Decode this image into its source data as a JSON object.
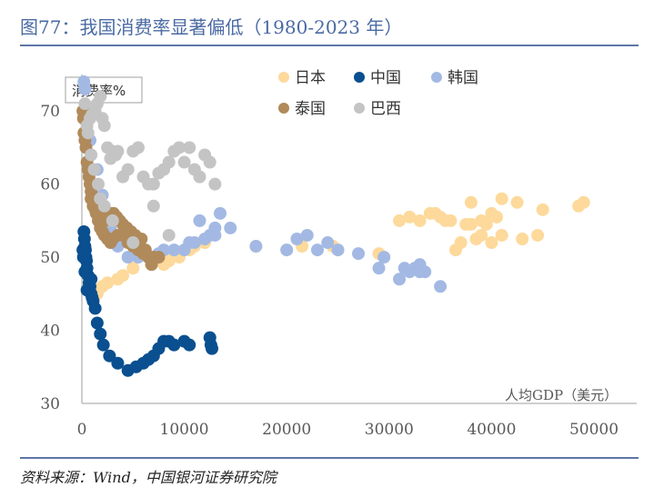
{
  "figure": {
    "title": "图77：我国消费率显著偏低（1980-2023 年）",
    "source": "资料来源：Wind，中国银河证券研究院"
  },
  "chart_data": {
    "type": "scatter",
    "title": "",
    "xlabel": "人均GDP（美元）",
    "ylabel": "消费率%",
    "xlim": [
      0,
      52000
    ],
    "ylim": [
      30,
      75
    ],
    "x_ticks": [
      "0",
      "10000",
      "20000",
      "30000",
      "40000",
      "50000"
    ],
    "y_ticks": [
      "30",
      "40",
      "50",
      "60",
      "70"
    ],
    "grid": false,
    "legend_position": "top-right",
    "series": [
      {
        "name": "日本",
        "color": "#fdd99b",
        "x": [
          9500,
          10500,
          11000,
          12000,
          9000,
          8500,
          8000,
          5000,
          4000,
          3500,
          2500,
          2000,
          1500,
          17000,
          20000,
          21500,
          25000,
          24500,
          29500,
          29000,
          31000,
          32000,
          33000,
          34500,
          35000,
          35500,
          36000,
          37500,
          38000,
          39000,
          39500,
          40000,
          40500,
          41000,
          42500,
          43000,
          45000,
          49000,
          48500,
          39000,
          37000,
          44500,
          41000,
          40000,
          38500,
          36500,
          34000,
          38000
        ],
        "y": [
          50,
          51,
          51.5,
          52,
          50.5,
          49.5,
          49,
          48.5,
          47.5,
          47,
          46.5,
          46,
          45,
          51.5,
          51,
          51.5,
          51,
          51.5,
          50,
          50.5,
          55,
          55.5,
          55,
          56,
          55.5,
          55,
          55,
          54.5,
          57.5,
          55,
          54.5,
          56,
          55.5,
          58,
          57.5,
          52.5,
          56.5,
          57.5,
          57,
          53,
          52,
          53,
          53,
          52,
          52.5,
          51,
          56,
          54.5
        ]
      },
      {
        "name": "中国",
        "color": "#0a4f8f",
        "x": [
          200,
          250,
          300,
          350,
          400,
          450,
          500,
          600,
          700,
          800,
          900,
          1000,
          1100,
          1300,
          1500,
          1800,
          2100,
          2700,
          3500,
          4500,
          5300,
          6000,
          6500,
          7000,
          7500,
          8000,
          8500,
          9000,
          10000,
          10500,
          12500,
          12700,
          12600
        ],
        "y": [
          53.5,
          52.5,
          51.5,
          51,
          50,
          49.5,
          48.5,
          47.5,
          46.5,
          46,
          45,
          44.5,
          44,
          43,
          41,
          39.5,
          38,
          36.5,
          35.5,
          34.5,
          35,
          35.5,
          36,
          36.5,
          37.5,
          38.5,
          38.5,
          38,
          38.5,
          38,
          39,
          37.5,
          38
        ],
        "extra": [
          [
            100,
            51
          ],
          [
            150,
            50
          ],
          [
            300,
            48
          ],
          [
            500,
            45.5
          ],
          [
            900,
            47
          ]
        ]
      },
      {
        "name": "韩国",
        "color": "#a3b9e3",
        "x": [
          200,
          300,
          500,
          800,
          1500,
          2000,
          2400,
          2800,
          3500,
          4500,
          5500,
          6500,
          7500,
          8000,
          9000,
          10000,
          11000,
          12000,
          12500,
          13000,
          14500,
          17000,
          20000,
          21000,
          22000,
          23000,
          24000,
          25000,
          27000,
          29000,
          31000,
          32000,
          33000,
          33500,
          35000,
          29500,
          32500,
          31500,
          33000,
          10500,
          11500,
          13500,
          13000
        ],
        "y": [
          74,
          73,
          70,
          66,
          62,
          58.5,
          56,
          54,
          51.5,
          50,
          50,
          50,
          50.5,
          51,
          51,
          51,
          52,
          52.5,
          53,
          53,
          54,
          51.5,
          51,
          52.5,
          53,
          51,
          52,
          51,
          50.5,
          48.5,
          47,
          48,
          48,
          48,
          46,
          50,
          48.5,
          48.5,
          49,
          52,
          55,
          56,
          54
        ]
      },
      {
        "name": "泰国",
        "color": "#b08a5a",
        "x": [
          100,
          150,
          200,
          300,
          400,
          500,
          600,
          700,
          800,
          900,
          1000,
          1200,
          1400,
          1600,
          1800,
          2000,
          2200,
          2500,
          2800,
          3000,
          3500,
          4000,
          4500,
          5000,
          5500,
          6000,
          6500,
          7000,
          7500,
          6800,
          7000,
          6200,
          5800,
          5200,
          4800,
          4400,
          4000,
          3700,
          3400,
          3100,
          2800,
          2500,
          2200,
          1900,
          1600,
          1300,
          1100,
          900
        ],
        "y": [
          70,
          69,
          67,
          66,
          65,
          63,
          62,
          61,
          60,
          59,
          58,
          57,
          56,
          55,
          54,
          53.5,
          53,
          52.5,
          52,
          52.5,
          53,
          53,
          52,
          51.5,
          51,
          50.5,
          50,
          50,
          50,
          49,
          50,
          51,
          52.5,
          53,
          53.5,
          54,
          54.5,
          55,
          55.5,
          56,
          56,
          55.5,
          55,
          55.5,
          56,
          56.5,
          57,
          58
        ]
      },
      {
        "name": "巴西",
        "color": "#c4c4c4",
        "x": [
          500,
          800,
          1000,
          1300,
          1500,
          1800,
          2000,
          2200,
          2500,
          2800,
          3000,
          3300,
          3500,
          4000,
          4500,
          5000,
          5500,
          6000,
          6500,
          7000,
          7500,
          8000,
          8500,
          9000,
          9500,
          10000,
          10500,
          11000,
          11500,
          12000,
          12500,
          13000,
          7000,
          8500,
          5000,
          3000,
          2200,
          1800,
          1600,
          1200,
          900,
          600,
          300
        ],
        "y": [
          68,
          69,
          69.5,
          70,
          71,
          72,
          69,
          68,
          65,
          63.5,
          64.5,
          64,
          64.5,
          61,
          62,
          64.5,
          65,
          61,
          60,
          60,
          61.5,
          62,
          63,
          64.5,
          65,
          63,
          65,
          62,
          61,
          64,
          63,
          60,
          57,
          53,
          52,
          55,
          57,
          58,
          60,
          62,
          64,
          67,
          71
        ]
      }
    ]
  }
}
